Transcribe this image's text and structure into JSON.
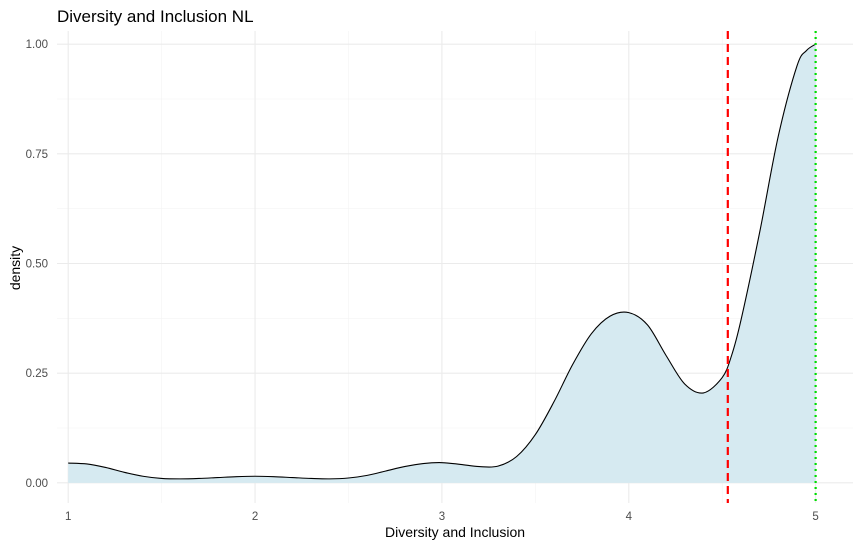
{
  "chart_data": {
    "type": "area",
    "title": "Diversity and Inclusion NL",
    "xlabel": "Diversity and Inclusion",
    "ylabel": "density",
    "xlim": [
      0.94,
      5.2
    ],
    "ylim": [
      -0.046,
      1.03
    ],
    "x_ticks": [
      "1",
      "2",
      "3",
      "4",
      "5"
    ],
    "y_ticks": [
      "0.00",
      "0.25",
      "0.50",
      "0.75",
      "1.00"
    ],
    "grid": true,
    "legend": "none",
    "fill_color": "#d6eaf1",
    "line_color": "#000000",
    "series": [
      {
        "x": [
          1.0,
          1.1,
          1.2,
          1.3,
          1.4,
          1.5,
          1.6,
          1.7,
          1.8,
          1.9,
          2.0,
          2.1,
          2.2,
          2.3,
          2.4,
          2.5,
          2.6,
          2.7,
          2.8,
          2.9,
          3.0,
          3.1,
          3.2,
          3.3,
          3.4,
          3.5,
          3.6,
          3.7,
          3.8,
          3.9,
          4.0,
          4.1,
          4.2,
          4.3,
          4.4,
          4.5,
          4.55,
          4.6,
          4.7,
          4.8,
          4.9,
          4.95,
          5.0
        ],
        "y": [
          0.045,
          0.043,
          0.035,
          0.024,
          0.015,
          0.01,
          0.009,
          0.01,
          0.012,
          0.014,
          0.015,
          0.014,
          0.012,
          0.01,
          0.009,
          0.011,
          0.017,
          0.027,
          0.037,
          0.044,
          0.046,
          0.042,
          0.037,
          0.038,
          0.06,
          0.11,
          0.185,
          0.27,
          0.34,
          0.38,
          0.388,
          0.36,
          0.29,
          0.225,
          0.205,
          0.24,
          0.29,
          0.37,
          0.57,
          0.79,
          0.95,
          0.985,
          1.0
        ]
      }
    ],
    "reference_lines": [
      {
        "x": 4.53,
        "color": "#ff0000",
        "style": "dashed"
      },
      {
        "x": 5.0,
        "color": "#00dd00",
        "style": "dotted"
      }
    ]
  }
}
